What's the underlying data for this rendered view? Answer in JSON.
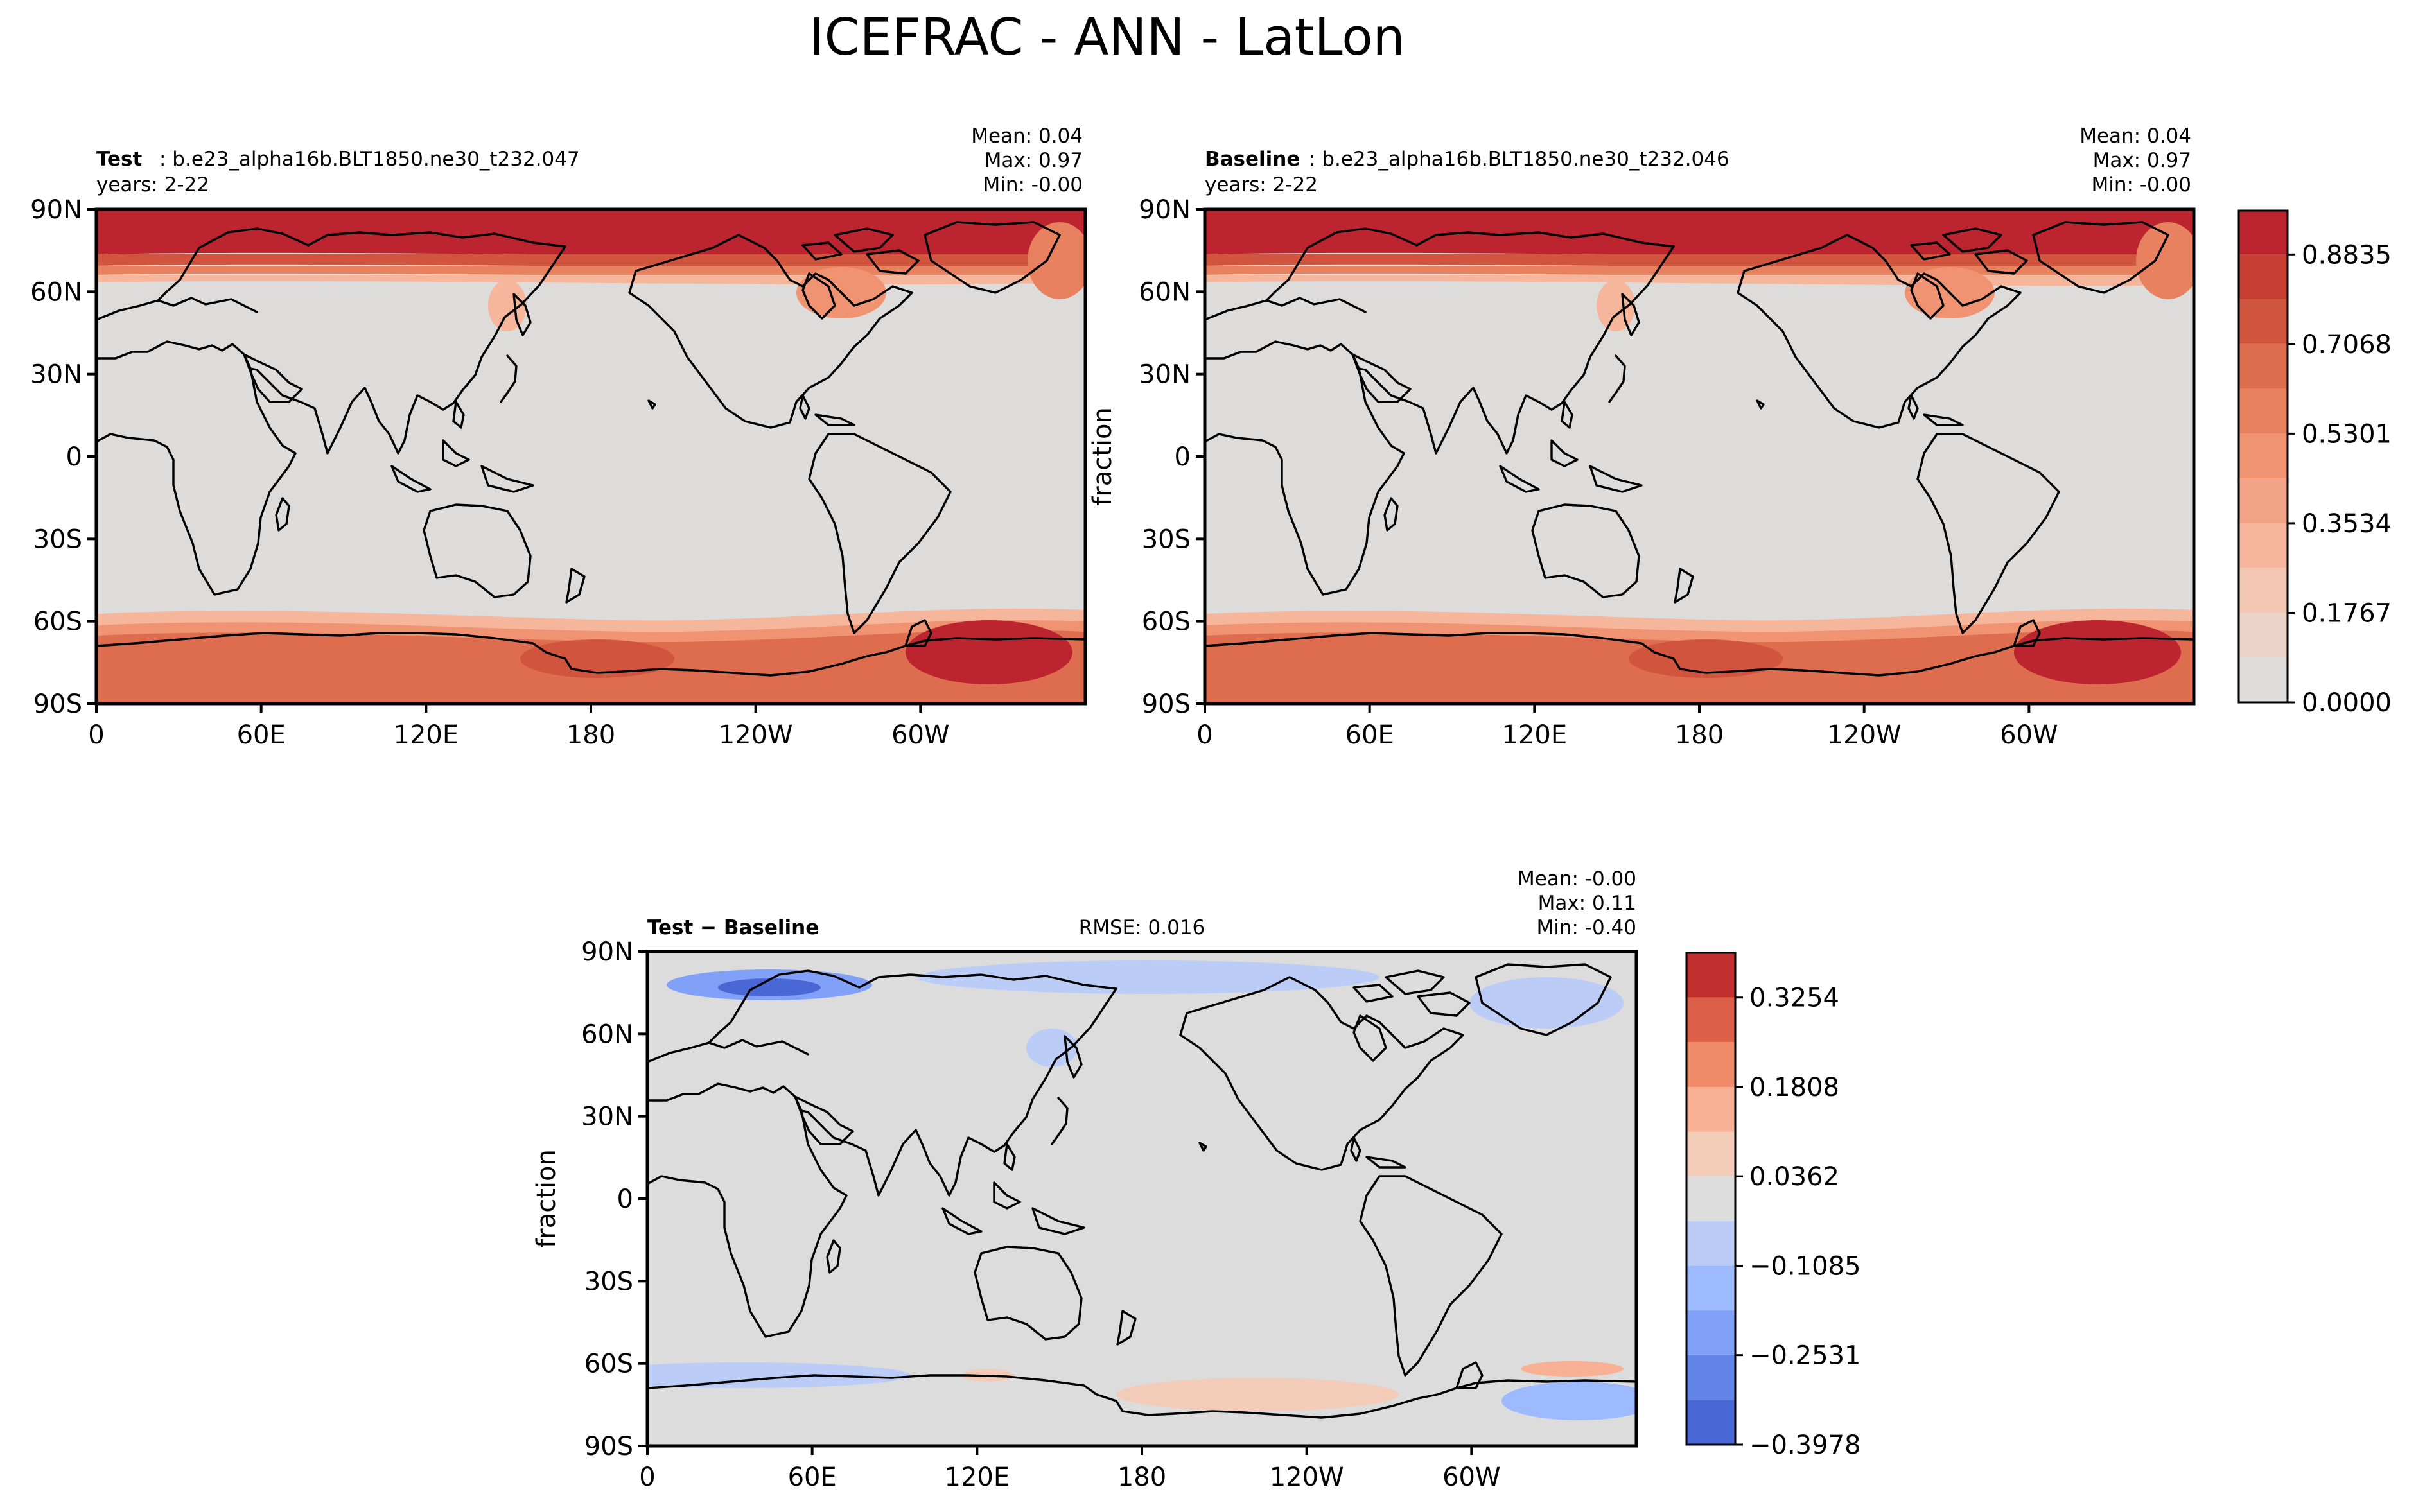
{
  "figure": {
    "title": "ICEFRAC - ANN - LatLon",
    "lat_ticks": [
      "90N",
      "60N",
      "30N",
      "0",
      "30S",
      "60S",
      "90S"
    ],
    "lon_ticks": [
      "0",
      "60E",
      "120E",
      "180",
      "120W",
      "60W"
    ]
  },
  "panels": {
    "test": {
      "label": "Test",
      "case": ": b.e23_alpha16b.BLT1850.ne30_t232.047",
      "years": "years: 2-22",
      "mean": "Mean:  0.04",
      "max": "Max:  0.97",
      "min": "Min: -0.00"
    },
    "baseline": {
      "label": "Baseline",
      "case": ": b.e23_alpha16b.BLT1850.ne30_t232.046",
      "years": "years: 2-22",
      "mean": "Mean:  0.04",
      "max": "Max:  0.97",
      "min": "Min: -0.00",
      "ylabel": "fraction"
    },
    "diff": {
      "label": "Test − Baseline",
      "rmse": "RMSE: 0.016",
      "mean": "Mean: -0.00",
      "max": "Max:  0.11",
      "min": "Min: -0.40",
      "ylabel": "fraction"
    }
  },
  "colorbars": {
    "fraction": {
      "tick_labels": [
        "0.0000",
        "0.1767",
        "0.3534",
        "0.5301",
        "0.7068",
        "0.8835"
      ],
      "ticks": [
        0.0,
        0.1767,
        0.3534,
        0.5301,
        0.7068,
        0.8835
      ],
      "levels": [
        0.0,
        0.0884,
        0.1767,
        0.2651,
        0.3534,
        0.4418,
        0.5301,
        0.6185,
        0.7068,
        0.7952,
        0.8835,
        0.97
      ],
      "colors": [
        "#dddcdb",
        "#ecd3c8",
        "#f3c7b3",
        "#f6b69c",
        "#f4a486",
        "#f09373",
        "#e8815f",
        "#de6c4e",
        "#d1553e",
        "#c73e33",
        "#bc2530"
      ]
    },
    "diff": {
      "tick_labels": [
        "−0.3978",
        "−0.2531",
        "−0.1085",
        "0.0362",
        "0.1808",
        "0.3254"
      ],
      "ticks": [
        -0.3978,
        -0.2531,
        -0.1085,
        0.0362,
        0.1808,
        0.3254
      ],
      "levels": [
        -0.3978,
        -0.3255,
        -0.2531,
        -0.1808,
        -0.1085,
        -0.0362,
        0.0362,
        0.1085,
        0.1808,
        0.2531,
        0.3254,
        0.3978
      ],
      "colors": [
        "#4a67d6",
        "#6385ea",
        "#80a1f7",
        "#9ebafe",
        "#bbcdf7",
        "#dcdcdc",
        "#f2ccb8",
        "#f7b093",
        "#ee8a68",
        "#dc6049",
        "#c1302f"
      ]
    }
  },
  "style": {
    "ocean_fill": "#dddcdb",
    "diff_background": "#dcdcdc"
  }
}
